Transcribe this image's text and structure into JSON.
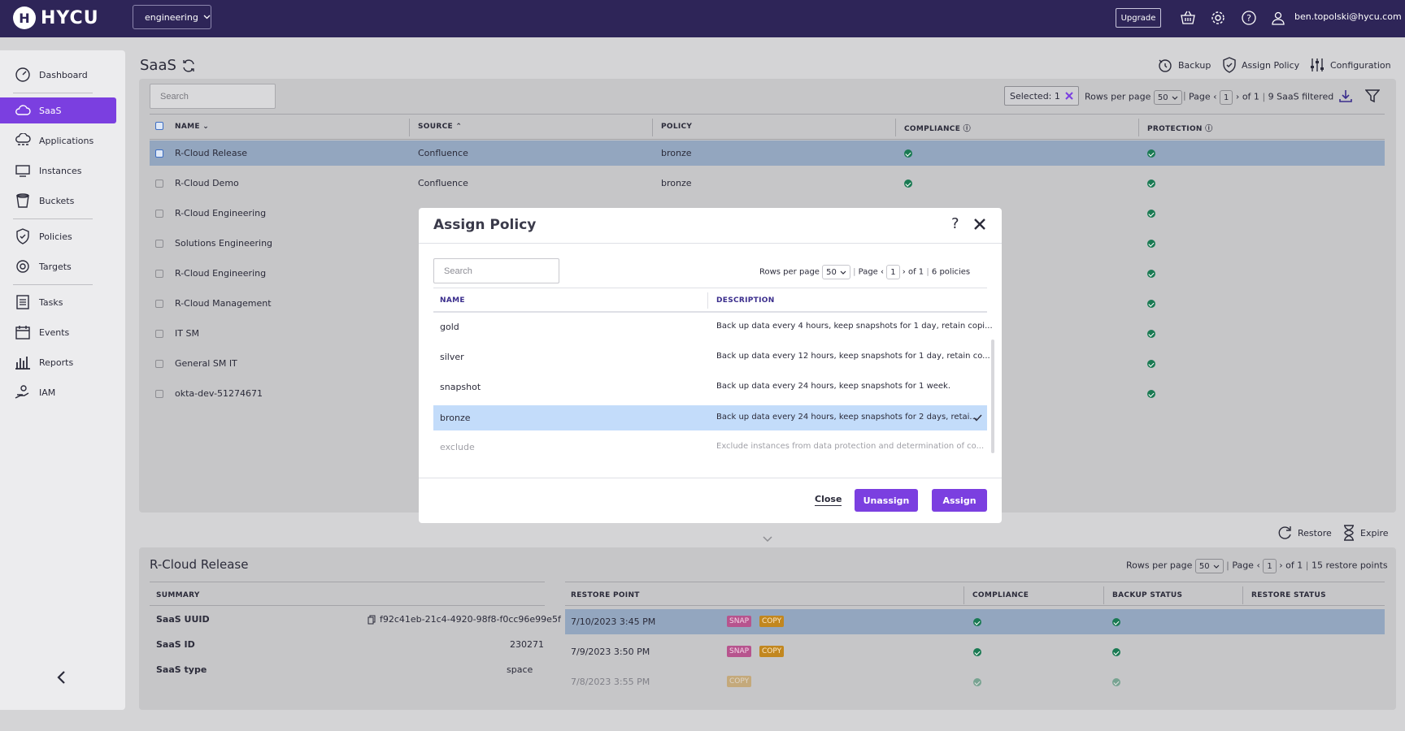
{
  "topbar": {
    "brand": "HYCU",
    "tenant": "engineering",
    "upgrade_label": "Upgrade",
    "user_email": "ben.topolski@hycu.com"
  },
  "sidebar": {
    "items": [
      {
        "label": "Dashboard",
        "icon": "gauge-icon"
      },
      {
        "label": "SaaS",
        "icon": "cloud-icon",
        "active": true
      },
      {
        "label": "Applications",
        "icon": "cloud-apps-icon"
      },
      {
        "label": "Instances",
        "icon": "monitor-icon"
      },
      {
        "label": "Buckets",
        "icon": "bucket-icon"
      },
      {
        "label": "Policies",
        "icon": "shield-icon"
      },
      {
        "label": "Targets",
        "icon": "target-icon"
      },
      {
        "label": "Tasks",
        "icon": "list-icon"
      },
      {
        "label": "Events",
        "icon": "calendar-icon"
      },
      {
        "label": "Reports",
        "icon": "bar-chart-icon"
      },
      {
        "label": "IAM",
        "icon": "user-hand-icon"
      }
    ]
  },
  "page": {
    "title": "SaaS",
    "actions": {
      "backup": "Backup",
      "assign_policy": "Assign Policy",
      "configuration": "Configuration"
    }
  },
  "table": {
    "search_placeholder": "Search",
    "selected_label": "Selected: 1",
    "rows_per_page_label": "Rows per page",
    "rows_per_page_value": "50",
    "page_label": "Page",
    "page_value": "1",
    "page_of": "of 1",
    "filtered": "9 SaaS filtered",
    "columns": [
      "NAME",
      "SOURCE",
      "POLICY",
      "COMPLIANCE",
      "PROTECTION"
    ],
    "rows": [
      {
        "name": "R-Cloud Release",
        "source": "Confluence",
        "policy": "bronze"
      },
      {
        "name": "R-Cloud Demo",
        "source": "Confluence",
        "policy": "bronze"
      },
      {
        "name": "R-Cloud Engineering",
        "source": "",
        "policy": ""
      },
      {
        "name": "Solutions Engineering",
        "source": "",
        "policy": ""
      },
      {
        "name": "R-Cloud Engineering",
        "source": "",
        "policy": ""
      },
      {
        "name": "R-Cloud Management",
        "source": "",
        "policy": ""
      },
      {
        "name": "IT SM",
        "source": "",
        "policy": ""
      },
      {
        "name": "General SM IT",
        "source": "",
        "policy": ""
      },
      {
        "name": "okta-dev-51274671",
        "source": "",
        "policy": ""
      }
    ]
  },
  "detail": {
    "title": "R-Cloud Release",
    "actions": {
      "restore": "Restore",
      "expire": "Expire"
    },
    "rows_per_page_label": "Rows per page",
    "rows_per_page_value": "50",
    "page_label": "Page",
    "page_value": "1",
    "page_of": "of 1",
    "count": "15 restore points",
    "summary_header": "SUMMARY",
    "summary": [
      {
        "key": "SaaS UUID",
        "value": "f92c41eb-21c4-4920-98f8-f0cc96e99e5f"
      },
      {
        "key": "SaaS ID",
        "value": "230271"
      },
      {
        "key": "SaaS type",
        "value": "space"
      }
    ],
    "columns": [
      "RESTORE POINT",
      "COMPLIANCE",
      "BACKUP STATUS",
      "RESTORE STATUS"
    ],
    "restore_points": [
      {
        "date": "7/10/2023 3:45 PM",
        "snap": "SNAP",
        "copy": "COPY"
      },
      {
        "date": "7/9/2023 3:50 PM",
        "snap": "SNAP",
        "copy": "COPY"
      },
      {
        "date": "7/8/2023 3:55 PM",
        "snap": "",
        "copy": "COPY"
      }
    ]
  },
  "modal": {
    "title": "Assign Policy",
    "search_placeholder": "Search",
    "rows_per_page_label": "Rows per page",
    "rows_per_page_value": "50",
    "page_label": "Page",
    "page_value": "1",
    "page_of": "of 1",
    "count": "6 policies",
    "columns": [
      "NAME",
      "DESCRIPTION"
    ],
    "policies": [
      {
        "name": "gold",
        "description": "Back up data every 4 hours, keep snapshots for 1 day, retain copi..."
      },
      {
        "name": "silver",
        "description": "Back up data every 12 hours, keep snapshots for 1 day, retain co..."
      },
      {
        "name": "snapshot",
        "description": "Back up data every 24 hours, keep snapshots for 1 week."
      },
      {
        "name": "bronze",
        "description": "Back up data every 24 hours, keep snapshots for 2 days, retai...",
        "selected": true
      },
      {
        "name": "exclude",
        "description": "Exclude instances from data protection and determination of co..."
      }
    ],
    "close_label": "Close",
    "unassign_label": "Unassign",
    "assign_label": "Assign"
  }
}
